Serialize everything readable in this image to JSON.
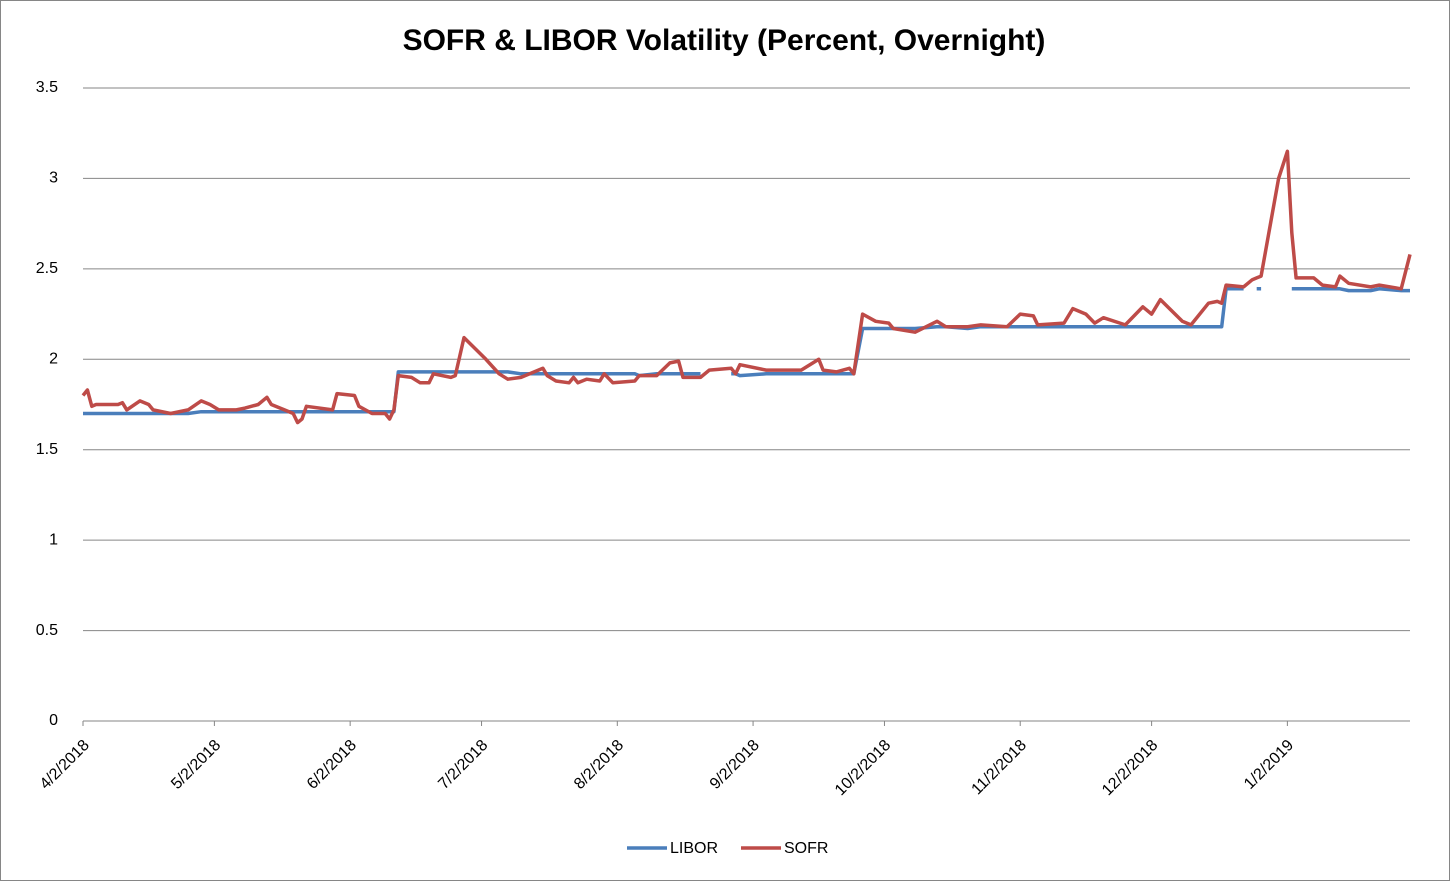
{
  "chart_data": {
    "type": "line",
    "title": "SOFR & LIBOR Volatility (Percent, Overnight)",
    "x": [
      "4/2/2018",
      "4/3/2018",
      "4/4/2018",
      "4/5/2018",
      "4/10/2018",
      "4/11/2018",
      "4/12/2018",
      "4/15/2018",
      "4/17/2018",
      "4/18/2018",
      "4/22/2018",
      "4/26/2018",
      "4/29/2018",
      "5/1/2018",
      "5/3/2018",
      "5/7/2018",
      "5/9/2018",
      "5/12/2018",
      "5/14/2018",
      "5/15/2018",
      "5/18/2018",
      "5/20/2018",
      "5/21/2018",
      "5/22/2018",
      "5/23/2018",
      "5/29/2018",
      "5/30/2018",
      "6/3/2018",
      "6/4/2018",
      "6/7/2018",
      "6/10/2018",
      "6/11/2018",
      "6/12/2018",
      "6/13/2018",
      "6/16/2018",
      "6/18/2018",
      "6/20/2018",
      "6/21/2018",
      "6/25/2018",
      "6/26/2018",
      "6/28/2018",
      "7/3/2018",
      "7/6/2018",
      "7/8/2018",
      "7/11/2018",
      "7/16/2018",
      "7/17/2018",
      "7/19/2018",
      "7/22/2018",
      "7/23/2018",
      "7/24/2018",
      "7/26/2018",
      "7/29/2018",
      "7/30/2018",
      "8/1/2018",
      "8/6/2018",
      "8/7/2018",
      "8/11/2018",
      "8/14/2018",
      "8/16/2018",
      "8/17/2018",
      "8/21/2018",
      "8/23/2018",
      "8/28/2018",
      "8/29/2018",
      "8/30/2018",
      "9/5/2018",
      "9/13/2018",
      "9/17/2018",
      "9/18/2018",
      "9/21/2018",
      "9/24/2018",
      "9/25/2018",
      "9/27/2018",
      "9/30/2018",
      "10/3/2018",
      "10/4/2018",
      "10/9/2018",
      "10/14/2018",
      "10/16/2018",
      "10/21/2018",
      "10/24/2018",
      "10/30/2018",
      "11/2/2018",
      "11/5/2018",
      "11/6/2018",
      "11/12/2018",
      "11/14/2018",
      "11/17/2018",
      "11/19/2018",
      "11/21/2018",
      "11/26/2018",
      "11/30/2018",
      "12/2/2018",
      "12/4/2018",
      "12/9/2018",
      "12/11/2018",
      "12/15/2018",
      "12/17/2018",
      "12/18/2018",
      "12/19/2018",
      "12/23/2018",
      "12/25/2018",
      "12/26/2018",
      "12/27/2018",
      "12/31/2018",
      "1/2/2019",
      "1/3/2019",
      "1/4/2019",
      "1/8/2019",
      "1/10/2019",
      "1/13/2019",
      "1/14/2019",
      "1/16/2019",
      "1/21/2019",
      "1/23/2019",
      "1/28/2019",
      "1/30/2019"
    ],
    "series": [
      {
        "name": "LIBOR",
        "color": "#4a7ebb",
        "values": [
          1.7,
          1.7,
          1.7,
          1.7,
          1.7,
          1.7,
          1.7,
          1.7,
          1.7,
          1.7,
          1.7,
          1.7,
          1.71,
          1.71,
          1.71,
          1.71,
          1.71,
          1.71,
          1.71,
          1.71,
          1.71,
          1.71,
          1.71,
          1.71,
          1.71,
          1.71,
          1.71,
          1.71,
          1.71,
          1.71,
          1.71,
          1.71,
          1.71,
          1.93,
          1.93,
          1.93,
          1.93,
          1.93,
          1.93,
          1.93,
          1.93,
          1.93,
          1.93,
          1.93,
          1.92,
          1.92,
          1.92,
          1.92,
          1.92,
          1.92,
          1.92,
          1.92,
          1.92,
          1.92,
          1.92,
          1.92,
          1.91,
          1.92,
          1.92,
          1.92,
          1.92,
          1.92,
          null,
          1.92,
          1.92,
          1.91,
          1.92,
          1.92,
          1.92,
          1.92,
          1.92,
          1.92,
          1.92,
          2.17,
          2.17,
          2.17,
          2.17,
          2.17,
          2.18,
          2.18,
          2.17,
          2.18,
          2.18,
          2.18,
          2.18,
          2.18,
          2.18,
          2.18,
          2.18,
          2.18,
          2.18,
          2.18,
          2.18,
          2.18,
          2.18,
          2.18,
          2.18,
          2.18,
          2.18,
          2.18,
          2.39,
          2.39,
          null,
          2.39,
          2.39,
          null,
          null,
          2.39,
          2.39,
          2.39,
          2.39,
          2.39,
          2.39,
          2.38,
          2.38,
          2.39,
          2.38,
          2.38
        ]
      },
      {
        "name": "SOFR",
        "color": "#be4b48",
        "values": [
          1.8,
          1.83,
          1.74,
          1.75,
          1.75,
          1.76,
          1.72,
          1.77,
          1.75,
          1.72,
          1.7,
          1.72,
          1.77,
          1.75,
          1.72,
          1.72,
          1.73,
          1.75,
          1.79,
          1.75,
          1.72,
          1.7,
          1.65,
          1.67,
          1.74,
          1.72,
          1.81,
          1.8,
          1.74,
          1.7,
          1.7,
          1.67,
          1.72,
          1.91,
          1.9,
          1.87,
          1.87,
          1.92,
          1.9,
          1.91,
          2.12,
          2.0,
          1.92,
          1.89,
          1.9,
          1.95,
          1.91,
          1.88,
          1.87,
          1.9,
          1.87,
          1.89,
          1.88,
          1.92,
          1.87,
          1.88,
          1.91,
          1.91,
          1.98,
          1.99,
          1.9,
          1.9,
          1.94,
          1.95,
          1.92,
          1.97,
          1.94,
          1.94,
          2.0,
          1.94,
          1.93,
          1.95,
          1.92,
          2.25,
          2.21,
          2.2,
          2.17,
          2.15,
          2.21,
          2.18,
          2.18,
          2.19,
          2.18,
          2.25,
          2.24,
          2.19,
          2.2,
          2.28,
          2.25,
          2.2,
          2.23,
          2.19,
          2.29,
          2.25,
          2.33,
          2.21,
          2.19,
          2.31,
          2.32,
          2.31,
          2.41,
          2.4,
          2.44,
          2.45,
          2.46,
          3.0,
          3.15,
          2.7,
          2.45,
          2.45,
          2.41,
          2.4,
          2.46,
          2.42,
          2.4,
          2.41,
          2.39,
          2.58
        ]
      }
    ],
    "xlim": [
      "4/2/2018",
      "1/30/2019"
    ],
    "xticks": [
      "4/2/2018",
      "5/2/2018",
      "6/2/2018",
      "7/2/2018",
      "8/2/2018",
      "9/2/2018",
      "10/2/2018",
      "11/2/2018",
      "12/2/2018",
      "1/2/2019"
    ],
    "ylim": [
      0,
      3.5
    ],
    "yticks": [
      0,
      0.5,
      1,
      1.5,
      2,
      2.5,
      3,
      3.5
    ],
    "grid": true,
    "legend": "bottom"
  }
}
